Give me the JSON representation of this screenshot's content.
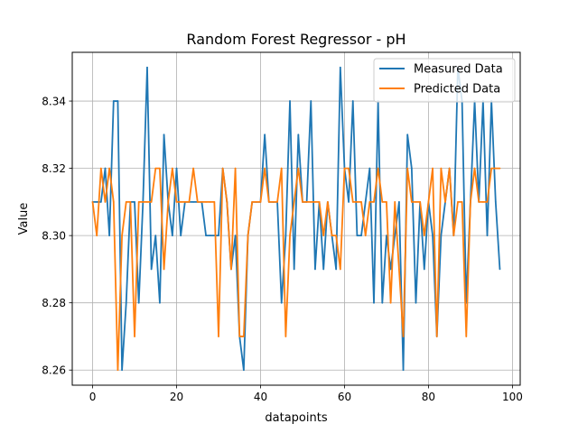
{
  "chart_data": {
    "type": "line",
    "title": "Random Forest Regressor - pH",
    "xlabel": "datapoints",
    "ylabel": "Value",
    "xlim": [
      -4.85,
      101.85
    ],
    "ylim": [
      8.2555,
      8.3545
    ],
    "xticks": [
      0,
      20,
      40,
      60,
      80,
      100
    ],
    "yticks": [
      8.26,
      8.28,
      8.3,
      8.32,
      8.34
    ],
    "xtick_labels": [
      "0",
      "20",
      "40",
      "60",
      "80",
      "100"
    ],
    "ytick_labels": [
      "8.26",
      "8.28",
      "8.30",
      "8.32",
      "8.34"
    ],
    "grid": true,
    "legend_position": "top-right",
    "series": [
      {
        "name": "Measured Data",
        "color": "#1f77b4",
        "values": [
          8.31,
          8.31,
          8.31,
          8.32,
          8.3,
          8.34,
          8.34,
          8.26,
          8.28,
          8.31,
          8.31,
          8.28,
          8.31,
          8.35,
          8.29,
          8.3,
          8.28,
          8.33,
          8.31,
          8.3,
          8.32,
          8.3,
          8.31,
          8.31,
          8.31,
          8.31,
          8.31,
          8.3,
          8.3,
          8.3,
          8.3,
          8.32,
          8.31,
          8.29,
          8.3,
          8.27,
          8.26,
          8.3,
          8.31,
          8.31,
          8.31,
          8.33,
          8.31,
          8.31,
          8.31,
          8.28,
          8.3,
          8.34,
          8.29,
          8.33,
          8.31,
          8.31,
          8.34,
          8.29,
          8.31,
          8.29,
          8.31,
          8.3,
          8.29,
          8.35,
          8.32,
          8.31,
          8.34,
          8.3,
          8.3,
          8.31,
          8.32,
          8.28,
          8.34,
          8.28,
          8.3,
          8.29,
          8.3,
          8.31,
          8.26,
          8.33,
          8.32,
          8.28,
          8.31,
          8.29,
          8.31,
          8.3,
          8.27,
          8.3,
          8.31,
          8.32,
          8.3,
          8.35,
          8.34,
          8.28,
          8.31,
          8.34,
          8.31,
          8.34,
          8.3,
          8.34,
          8.31,
          8.29
        ]
      },
      {
        "name": "Predicted Data",
        "color": "#ff7f0e",
        "values": [
          8.31,
          8.3,
          8.32,
          8.31,
          8.32,
          8.31,
          8.26,
          8.3,
          8.31,
          8.31,
          8.27,
          8.31,
          8.31,
          8.31,
          8.31,
          8.32,
          8.32,
          8.29,
          8.31,
          8.32,
          8.31,
          8.31,
          8.31,
          8.31,
          8.32,
          8.31,
          8.31,
          8.31,
          8.31,
          8.31,
          8.27,
          8.32,
          8.31,
          8.29,
          8.32,
          8.27,
          8.27,
          8.3,
          8.31,
          8.31,
          8.31,
          8.32,
          8.31,
          8.31,
          8.31,
          8.32,
          8.27,
          8.3,
          8.31,
          8.32,
          8.31,
          8.31,
          8.31,
          8.31,
          8.31,
          8.3,
          8.31,
          8.3,
          8.3,
          8.29,
          8.32,
          8.32,
          8.31,
          8.31,
          8.31,
          8.3,
          8.31,
          8.31,
          8.32,
          8.31,
          8.31,
          8.28,
          8.31,
          8.29,
          8.27,
          8.32,
          8.31,
          8.31,
          8.31,
          8.3,
          8.31,
          8.32,
          8.27,
          8.32,
          8.31,
          8.32,
          8.3,
          8.31,
          8.31,
          8.27,
          8.31,
          8.32,
          8.31,
          8.31,
          8.31,
          8.32,
          8.32,
          8.32
        ]
      }
    ]
  }
}
